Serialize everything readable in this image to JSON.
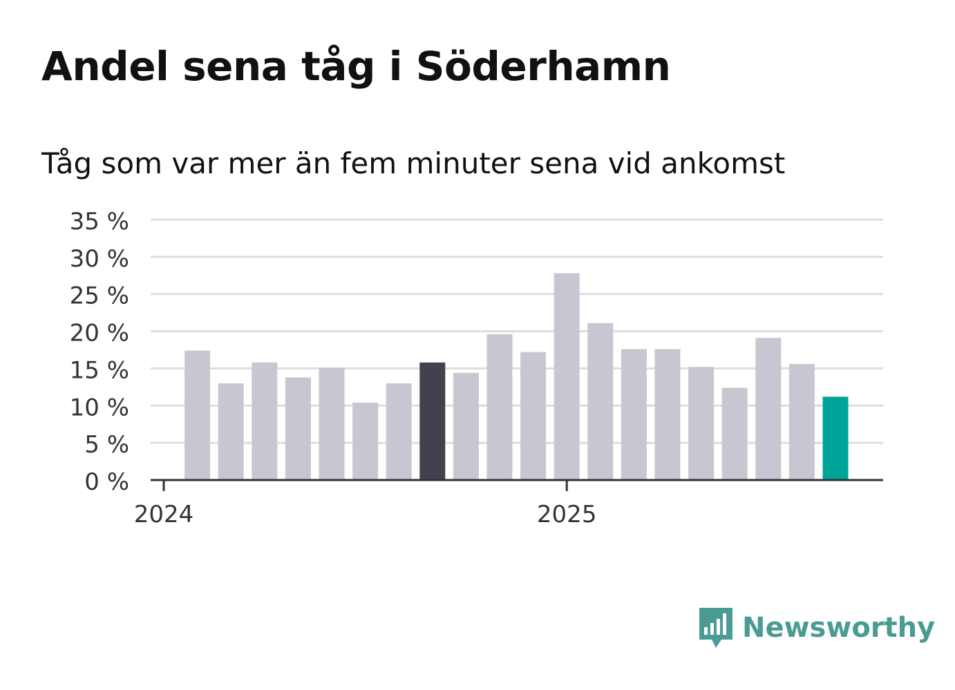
{
  "title": "Andel sena tåg i Söderhamn",
  "subtitle": "Tåg som var mer än fem minuter sena vid ankomst",
  "brand": {
    "name": "Newsworthy",
    "icon": "bar-chart-speech-bubble-icon",
    "color": "#4a9b93"
  },
  "colors": {
    "bar": "#c8c7d1",
    "highlight_dark": "#42414d",
    "highlight_latest": "#00a398",
    "grid": "#dddddd",
    "axis": "#333333"
  },
  "chart_data": {
    "type": "bar",
    "title": "Andel sena tåg i Söderhamn",
    "subtitle": "Tåg som var mer än fem minuter sena vid ankomst",
    "xlabel": "",
    "ylabel": "",
    "ylim": [
      0,
      35
    ],
    "y_ticks": [
      0,
      5,
      10,
      15,
      20,
      25,
      30,
      35
    ],
    "y_tick_labels": [
      "0 %",
      "5 %",
      "10 %",
      "15 %",
      "20 %",
      "25 %",
      "30 %",
      "35 %"
    ],
    "x_tick_labels": [
      "2024",
      "2025"
    ],
    "x_tick_months": [
      0,
      12
    ],
    "grid": true,
    "legend": "none",
    "months_index": [
      1,
      2,
      3,
      4,
      5,
      6,
      7,
      8,
      9,
      10,
      11,
      12,
      13,
      14,
      15,
      16,
      17,
      18,
      19,
      20
    ],
    "values": [
      17.4,
      13.0,
      15.8,
      13.8,
      15.1,
      10.4,
      13.0,
      15.8,
      14.4,
      19.6,
      17.2,
      27.8,
      21.1,
      17.6,
      17.6,
      15.2,
      12.4,
      19.1,
      15.6,
      11.2
    ],
    "highlight_dark_index": 7,
    "highlight_latest_index": 19
  }
}
